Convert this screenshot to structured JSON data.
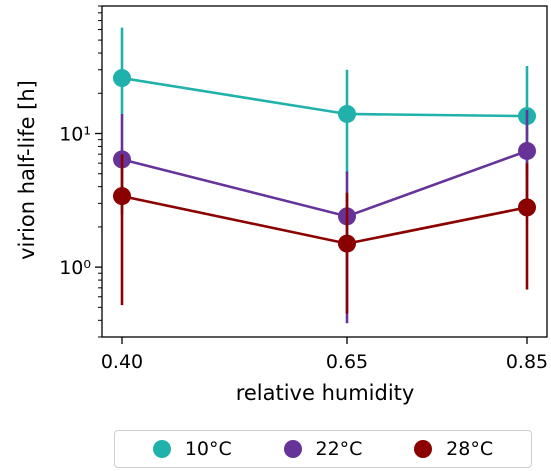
{
  "chart_data": {
    "type": "line",
    "xlabel": "relative humidity",
    "ylabel": "virion half-life [h]",
    "x": [
      0.4,
      0.65,
      0.85
    ],
    "x_tick_labels": [
      "0.40",
      "0.65",
      "0.85"
    ],
    "yscale": "log",
    "ylim": [
      0.3,
      90
    ],
    "y_tick_labels": [
      "10⁰",
      "10¹"
    ],
    "y_ticks": [
      1,
      10
    ],
    "grid": false,
    "legend_position": "bottom",
    "series": [
      {
        "name": "10°C",
        "color": "#20b2aa",
        "values": [
          26.0,
          14.0,
          13.5
        ],
        "err_low": [
          14.0,
          5.0,
          5.0
        ],
        "err_high": [
          62.0,
          30.0,
          32.0
        ]
      },
      {
        "name": "22°C",
        "color": "#663399",
        "values": [
          6.4,
          2.4,
          7.4
        ],
        "err_low": [
          2.5,
          0.38,
          2.5
        ],
        "err_high": [
          14.0,
          5.2,
          15.0
        ]
      },
      {
        "name": "28°C",
        "color": "#8b0000",
        "values": [
          3.4,
          1.5,
          2.8
        ],
        "err_low": [
          0.52,
          0.45,
          0.68
        ],
        "err_high": [
          7.0,
          3.6,
          6.0
        ]
      }
    ]
  }
}
